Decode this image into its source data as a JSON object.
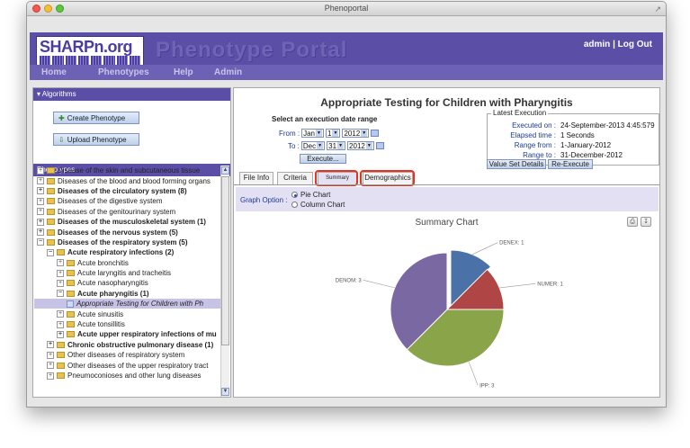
{
  "window": {
    "title": "Phenoportal"
  },
  "header": {
    "logo_text": "SHARPn.org",
    "portal_title": "Phenotype Portal",
    "user": "admin",
    "separator": "|",
    "logout": "Log Out"
  },
  "nav": {
    "items": [
      "Home",
      "Phenotypes",
      "Help",
      "Admin"
    ]
  },
  "left_panel": {
    "algorithms_title": "Algorithms",
    "create_button": "Create Phenotype",
    "upload_button": "Upload Phenotype",
    "phenotypes_title": "Phenotypes",
    "tree": [
      {
        "label": "Disease of the skin and subcutaneous tissue",
        "level": 0,
        "toggle": "+",
        "bold": false
      },
      {
        "label": "Diseases of the blood and blood forming organs",
        "level": 0,
        "toggle": "+",
        "bold": false
      },
      {
        "label": "Diseases of the circulatory system (8)",
        "level": 0,
        "toggle": "+",
        "bold": true
      },
      {
        "label": "Diseases of the digestive system",
        "level": 0,
        "toggle": "+",
        "bold": false
      },
      {
        "label": "Diseases of the genitourinary system",
        "level": 0,
        "toggle": "+",
        "bold": false
      },
      {
        "label": "Diseases of the musculoskeletal system (1)",
        "level": 0,
        "toggle": "+",
        "bold": true
      },
      {
        "label": "Diseases of the nervous system (5)",
        "level": 0,
        "toggle": "+",
        "bold": true
      },
      {
        "label": "Diseases of the respiratory system (5)",
        "level": 0,
        "toggle": "−",
        "bold": true
      },
      {
        "label": "Acute respiratory infections (2)",
        "level": 1,
        "toggle": "−",
        "bold": true
      },
      {
        "label": "Acute bronchitis",
        "level": 2,
        "toggle": "+",
        "bold": false
      },
      {
        "label": "Acute laryngitis and tracheitis",
        "level": 2,
        "toggle": "+",
        "bold": false
      },
      {
        "label": "Acute nasopharyngitis",
        "level": 2,
        "toggle": "+",
        "bold": false
      },
      {
        "label": "Acute pharyngitis (1)",
        "level": 2,
        "toggle": "−",
        "bold": true
      },
      {
        "label": "Appropriate Testing for Children with Ph",
        "level": 3,
        "toggle": "",
        "bold": false,
        "selected": true
      },
      {
        "label": "Acute sinusitis",
        "level": 2,
        "toggle": "+",
        "bold": false
      },
      {
        "label": "Acute tonsillitis",
        "level": 2,
        "toggle": "+",
        "bold": false
      },
      {
        "label": "Acute upper respiratory infections of mu",
        "level": 2,
        "toggle": "+",
        "bold": true
      },
      {
        "label": "Chronic obstructive pulmonary disease (1)",
        "level": 1,
        "toggle": "+",
        "bold": true
      },
      {
        "label": "Other diseases of respiratory system",
        "level": 1,
        "toggle": "+",
        "bold": false
      },
      {
        "label": "Other diseases of the upper respiratory tract",
        "level": 1,
        "toggle": "+",
        "bold": false
      },
      {
        "label": "Pneumoconioses and other lung diseases",
        "level": 1,
        "toggle": "+",
        "bold": false
      }
    ]
  },
  "main": {
    "title": "Appropriate Testing for Children with Pharyngitis",
    "range_label": "Select an execution date range",
    "from_label": "From :",
    "to_label": "To :",
    "from": {
      "month": "Jan",
      "day": "1",
      "year": "2012"
    },
    "to": {
      "month": "Dec",
      "day": "31",
      "year": "2012"
    },
    "execute_button": "Execute...",
    "latest": {
      "legend": "Latest Execution",
      "rows": [
        {
          "key": "Executed on :",
          "value": "24-September-2013 4:45:579"
        },
        {
          "key": "Elapsed time :",
          "value": "1 Seconds"
        },
        {
          "key": "Range from :",
          "value": "1-January-2012"
        },
        {
          "key": "Range to :",
          "value": "31-December-2012"
        }
      ],
      "value_set_button": "Value Set Details",
      "reexecute_button": "Re-Execute"
    },
    "tabs": [
      "File Info",
      "Criteria",
      "Summary",
      "Demographics"
    ],
    "active_tab": "Summary",
    "graph_option_label": "Graph Option :",
    "graph_options": [
      "Pie Chart",
      "Column Chart"
    ],
    "selected_graph": "Pie Chart"
  },
  "chart_data": {
    "type": "pie",
    "title": "Summary Chart",
    "slices": [
      {
        "name": "DENEX",
        "value": 1,
        "color": "#4a72a9"
      },
      {
        "name": "NUMER",
        "value": 1,
        "color": "#b04545"
      },
      {
        "name": "IPP",
        "value": 3,
        "color": "#8aa449"
      },
      {
        "name": "DENOM",
        "value": 3,
        "color": "#7a68a2"
      }
    ],
    "label_separator": ": "
  },
  "colors": {
    "banner": "#5b4ea6",
    "nav": "#6d61b5",
    "highlight": "#e5311e"
  }
}
